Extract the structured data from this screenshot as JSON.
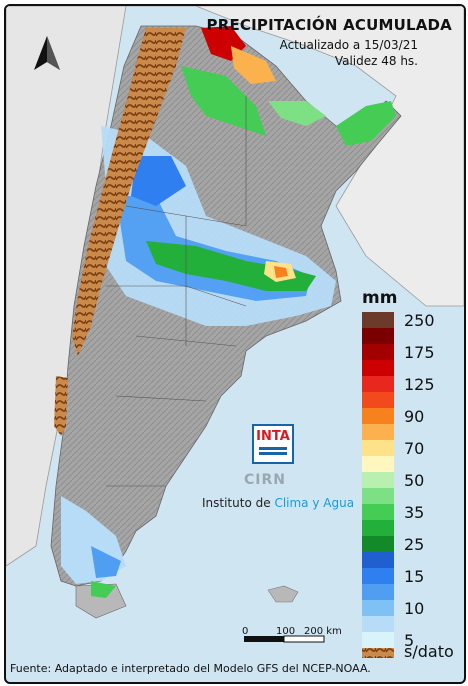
{
  "title": "PRECIPITACIÓN ACUMULADA",
  "updated": "Actualizado a 15/03/21",
  "validity": "Validez 48 hs.",
  "legend": {
    "unit": "mm",
    "swatches": [
      "#6b3a2a",
      "#7a0000",
      "#a30000",
      "#cc0000",
      "#e8271e",
      "#f24a1c",
      "#f7821d",
      "#fbb14d",
      "#fde28a",
      "#fff7bd",
      "#b9f0b0",
      "#7ee084",
      "#44cc55",
      "#22b03a",
      "#138a2a",
      "#1f5fd0",
      "#2f7ff0",
      "#4f9ef2",
      "#7fc0f5",
      "#b6dcf8",
      "#d9f3fb"
    ],
    "labels": [
      "250",
      "175",
      "125",
      "90",
      "70",
      "50",
      "35",
      "25",
      "15",
      "10",
      "5"
    ],
    "nodata": "s/dato"
  },
  "logo": {
    "inta": "INTA",
    "cirn": "CIRN",
    "institute_prefix": "Instituto de",
    "institute_highlight": "Clima y Agua"
  },
  "scale": {
    "labels": [
      "0",
      "100",
      "200 km"
    ]
  },
  "footer": "Fuente: Adaptado e interpretado del Modelo GFS del NCEP-NOAA.",
  "colors": {
    "land_gray": "#a8a8a8",
    "sea": "#cfe6f2",
    "neighbor": "#ececec",
    "nodata": "#b5651d"
  }
}
